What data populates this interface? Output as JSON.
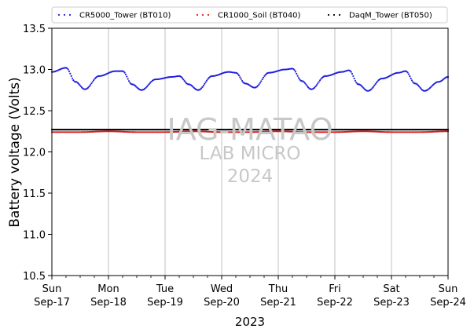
{
  "chart_data": {
    "type": "line",
    "xlabel": "2023",
    "ylabel": "Battery voltage (Volts)",
    "ylim": [
      10.5,
      13.5
    ],
    "y_ticks": [
      "10.5",
      "11.0",
      "11.5",
      "12.0",
      "12.5",
      "13.0",
      "13.5"
    ],
    "x_ticks": [
      {
        "day": "Sun",
        "date": "Sep-17"
      },
      {
        "day": "Mon",
        "date": "Sep-18"
      },
      {
        "day": "Tue",
        "date": "Sep-19"
      },
      {
        "day": "Wed",
        "date": "Sep-20"
      },
      {
        "day": "Thu",
        "date": "Sep-21"
      },
      {
        "day": "Fri",
        "date": "Sep-22"
      },
      {
        "day": "Sat",
        "date": "Sep-23"
      },
      {
        "day": "Sun",
        "date": "Sep-24"
      }
    ],
    "xlim": [
      "2023-09-17",
      "2023-09-24"
    ],
    "grid": "vertical",
    "legend_position": "top",
    "series": [
      {
        "name": "CR5000_Tower (BT010)",
        "color": "#1f1fdd",
        "marker": "dot",
        "points": [
          [
            "2023-09-17 00:00",
            12.97
          ],
          [
            "2023-09-17 06:00",
            13.02
          ],
          [
            "2023-09-17 10:00",
            12.85
          ],
          [
            "2023-09-17 14:00",
            12.76
          ],
          [
            "2023-09-17 20:00",
            12.92
          ],
          [
            "2023-09-18 03:00",
            12.98
          ],
          [
            "2023-09-18 06:00",
            12.98
          ],
          [
            "2023-09-18 10:00",
            12.82
          ],
          [
            "2023-09-18 14:00",
            12.75
          ],
          [
            "2023-09-18 20:00",
            12.88
          ],
          [
            "2023-09-19 03:00",
            12.91
          ],
          [
            "2023-09-19 06:00",
            12.92
          ],
          [
            "2023-09-19 10:00",
            12.82
          ],
          [
            "2023-09-19 14:00",
            12.75
          ],
          [
            "2023-09-19 20:00",
            12.92
          ],
          [
            "2023-09-20 03:00",
            12.97
          ],
          [
            "2023-09-20 06:00",
            12.96
          ],
          [
            "2023-09-20 10:00",
            12.83
          ],
          [
            "2023-09-20 14:00",
            12.78
          ],
          [
            "2023-09-20 20:00",
            12.96
          ],
          [
            "2023-09-21 03:00",
            13.0
          ],
          [
            "2023-09-21 06:00",
            13.01
          ],
          [
            "2023-09-21 10:00",
            12.86
          ],
          [
            "2023-09-21 14:00",
            12.76
          ],
          [
            "2023-09-21 20:00",
            12.92
          ],
          [
            "2023-09-22 03:00",
            12.97
          ],
          [
            "2023-09-22 06:00",
            12.99
          ],
          [
            "2023-09-22 10:00",
            12.82
          ],
          [
            "2023-09-22 14:00",
            12.74
          ],
          [
            "2023-09-22 20:00",
            12.89
          ],
          [
            "2023-09-23 03:00",
            12.96
          ],
          [
            "2023-09-23 06:00",
            12.98
          ],
          [
            "2023-09-23 10:00",
            12.83
          ],
          [
            "2023-09-23 14:00",
            12.74
          ],
          [
            "2023-09-23 20:00",
            12.85
          ],
          [
            "2023-09-24 00:00",
            12.91
          ]
        ]
      },
      {
        "name": "CR1000_Soil (BT040)",
        "color": "#dd1f1f",
        "marker": "dot",
        "points": [
          [
            "2023-09-17 00:00",
            12.24
          ],
          [
            "2023-09-17 12:00",
            12.24
          ],
          [
            "2023-09-18 00:00",
            12.25
          ],
          [
            "2023-09-18 12:00",
            12.24
          ],
          [
            "2023-09-19 00:00",
            12.24
          ],
          [
            "2023-09-19 12:00",
            12.25
          ],
          [
            "2023-09-20 00:00",
            12.24
          ],
          [
            "2023-09-20 12:00",
            12.24
          ],
          [
            "2023-09-21 00:00",
            12.25
          ],
          [
            "2023-09-21 12:00",
            12.24
          ],
          [
            "2023-09-22 00:00",
            12.24
          ],
          [
            "2023-09-22 12:00",
            12.25
          ],
          [
            "2023-09-23 00:00",
            12.24
          ],
          [
            "2023-09-23 12:00",
            12.24
          ],
          [
            "2023-09-24 00:00",
            12.25
          ]
        ]
      },
      {
        "name": "DaqM_Tower (BT050)",
        "color": "#000000",
        "marker": "dot",
        "points": [
          [
            "2023-09-17 00:00",
            12.27
          ],
          [
            "2023-09-17 12:00",
            12.27
          ],
          [
            "2023-09-18 00:00",
            12.27
          ],
          [
            "2023-09-18 12:00",
            12.27
          ],
          [
            "2023-09-19 00:00",
            12.27
          ],
          [
            "2023-09-19 12:00",
            12.27
          ],
          [
            "2023-09-20 00:00",
            12.27
          ],
          [
            "2023-09-20 12:00",
            12.27
          ],
          [
            "2023-09-21 00:00",
            12.27
          ],
          [
            "2023-09-21 12:00",
            12.27
          ],
          [
            "2023-09-22 00:00",
            12.27
          ],
          [
            "2023-09-22 12:00",
            12.27
          ],
          [
            "2023-09-23 00:00",
            12.27
          ],
          [
            "2023-09-23 12:00",
            12.27
          ],
          [
            "2023-09-24 00:00",
            12.27
          ]
        ]
      }
    ],
    "watermark": [
      "IAG-MATAO",
      "LAB MICRO",
      "2024"
    ]
  }
}
